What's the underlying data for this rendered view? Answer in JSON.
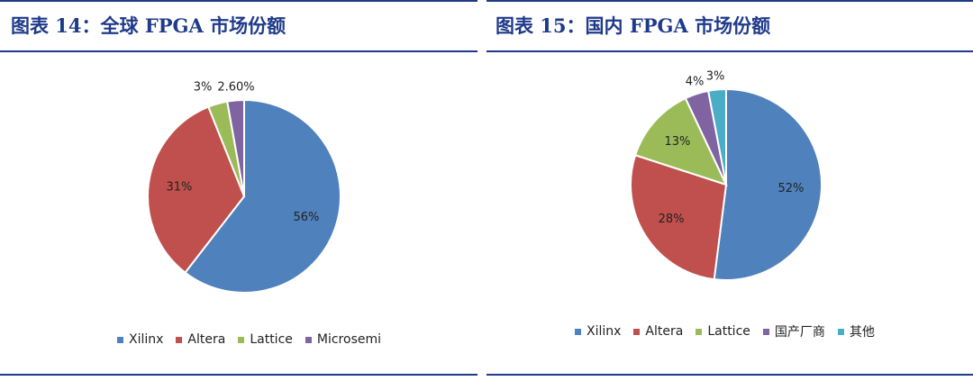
{
  "colors": {
    "accent": "#1f3a8a",
    "xilinx": "#4f81bd",
    "altera": "#c0504d",
    "lattice": "#9bbb59",
    "purple": "#8064a2",
    "teal": "#4bacc6"
  },
  "left": {
    "title": "图表 14：全球 FPGA 市场份额"
  },
  "right": {
    "title": "图表 15：国内 FPGA 市场份额"
  },
  "chart_data": [
    {
      "type": "pie",
      "title": "",
      "slices": [
        {
          "label": "Xilinx",
          "value": 56,
          "display": "56%",
          "color": "#4f81bd"
        },
        {
          "label": "Altera",
          "value": 31,
          "display": "31%",
          "color": "#c0504d"
        },
        {
          "label": "Lattice",
          "value": 3,
          "display": "3%",
          "color": "#9bbb59"
        },
        {
          "label": "Microsemi",
          "value": 2.6,
          "display": "2.60%",
          "color": "#8064a2"
        }
      ],
      "legend": "bottom"
    },
    {
      "type": "pie",
      "title": "",
      "slices": [
        {
          "label": "Xilinx",
          "value": 52,
          "display": "52%",
          "color": "#4f81bd"
        },
        {
          "label": "Altera",
          "value": 28,
          "display": "28%",
          "color": "#c0504d"
        },
        {
          "label": "Lattice",
          "value": 13,
          "display": "13%",
          "color": "#9bbb59"
        },
        {
          "label": "国产厂商",
          "value": 4,
          "display": "4%",
          "color": "#8064a2"
        },
        {
          "label": "其他",
          "value": 3,
          "display": "3%",
          "color": "#4bacc6"
        }
      ],
      "legend": "bottom"
    }
  ]
}
